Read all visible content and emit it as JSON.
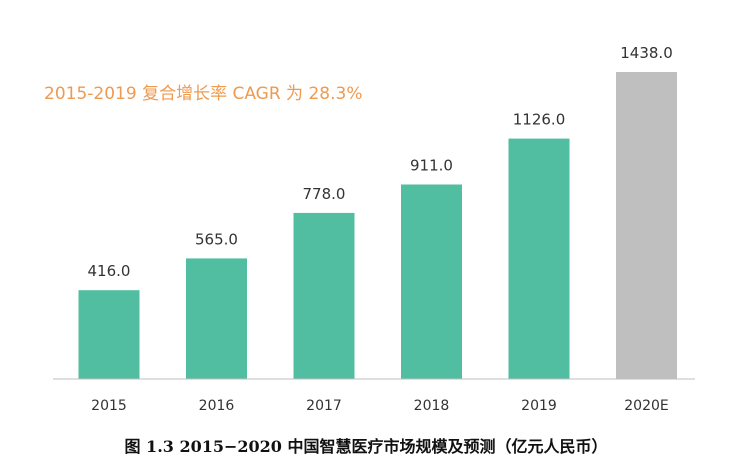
{
  "chart_data": {
    "type": "bar",
    "categories": [
      "2015",
      "2016",
      "2017",
      "2018",
      "2019",
      "2020E"
    ],
    "values": [
      416.0,
      565.0,
      778.0,
      911.0,
      1126.0,
      1438.0
    ],
    "value_labels": [
      "416.0",
      "565.0",
      "778.0",
      "911.0",
      "1126.0",
      "1438.0"
    ],
    "forecast": [
      false,
      false,
      false,
      false,
      false,
      true
    ],
    "colors": {
      "actual": "#52bea1",
      "forecast": "#bfbfbf",
      "annotation": "#ee9a4f",
      "axis": "#bfbfbf"
    },
    "annotation": "2015-2019 复合增长率 CAGR 为 28.3%",
    "caption": "图 1.3 2015−2020 中国智慧医疗市场规模及预测（亿元人民币）",
    "ylim": [
      0,
      1438
    ],
    "grid": false,
    "legend": "none"
  }
}
